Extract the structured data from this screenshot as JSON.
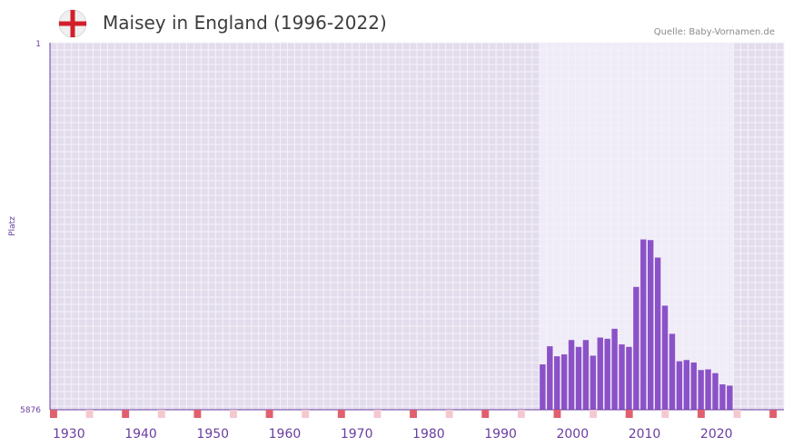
{
  "header": {
    "title": "Maisey in England (1996-2022)",
    "source": "Quelle: Baby-Vornamen.de",
    "flag_icon": "england-flag-icon"
  },
  "colors": {
    "plot_bg": "#e2dcec",
    "active_bg": "#efebf7",
    "grid": "#f5f2fa",
    "bar": "#8b52c8",
    "axis": "#6a3ea0",
    "marker_strong": "#e0606e",
    "marker_light": "#f3c9d0",
    "flag_red": "#d21f2b"
  },
  "chart_data": {
    "type": "bar",
    "title": "Maisey in England (1996-2022)",
    "xlabel": "",
    "ylabel": "Platz",
    "y_ticks": [
      "1",
      "5876"
    ],
    "ylim": [
      5876,
      1
    ],
    "xlim": [
      1928,
      2029
    ],
    "x_ticks": [
      "1930",
      "1940",
      "1950",
      "1960",
      "1970",
      "1980",
      "1990",
      "2000",
      "2010",
      "2020"
    ],
    "active_range": [
      1996,
      2022
    ],
    "categories": [
      1996,
      1997,
      1998,
      1999,
      2000,
      2001,
      2002,
      2003,
      2004,
      2005,
      2006,
      2007,
      2008,
      2009,
      2010,
      2011,
      2012,
      2013,
      2014,
      2015,
      2016,
      2017,
      2018,
      2019,
      2020,
      2021,
      2022
    ],
    "values": [
      5150,
      4860,
      5020,
      4990,
      4760,
      4870,
      4760,
      5010,
      4720,
      4740,
      4580,
      4830,
      4870,
      3910,
      3150,
      3160,
      3440,
      4210,
      4660,
      5100,
      5080,
      5120,
      5240,
      5230,
      5290,
      5470,
      5490
    ]
  }
}
